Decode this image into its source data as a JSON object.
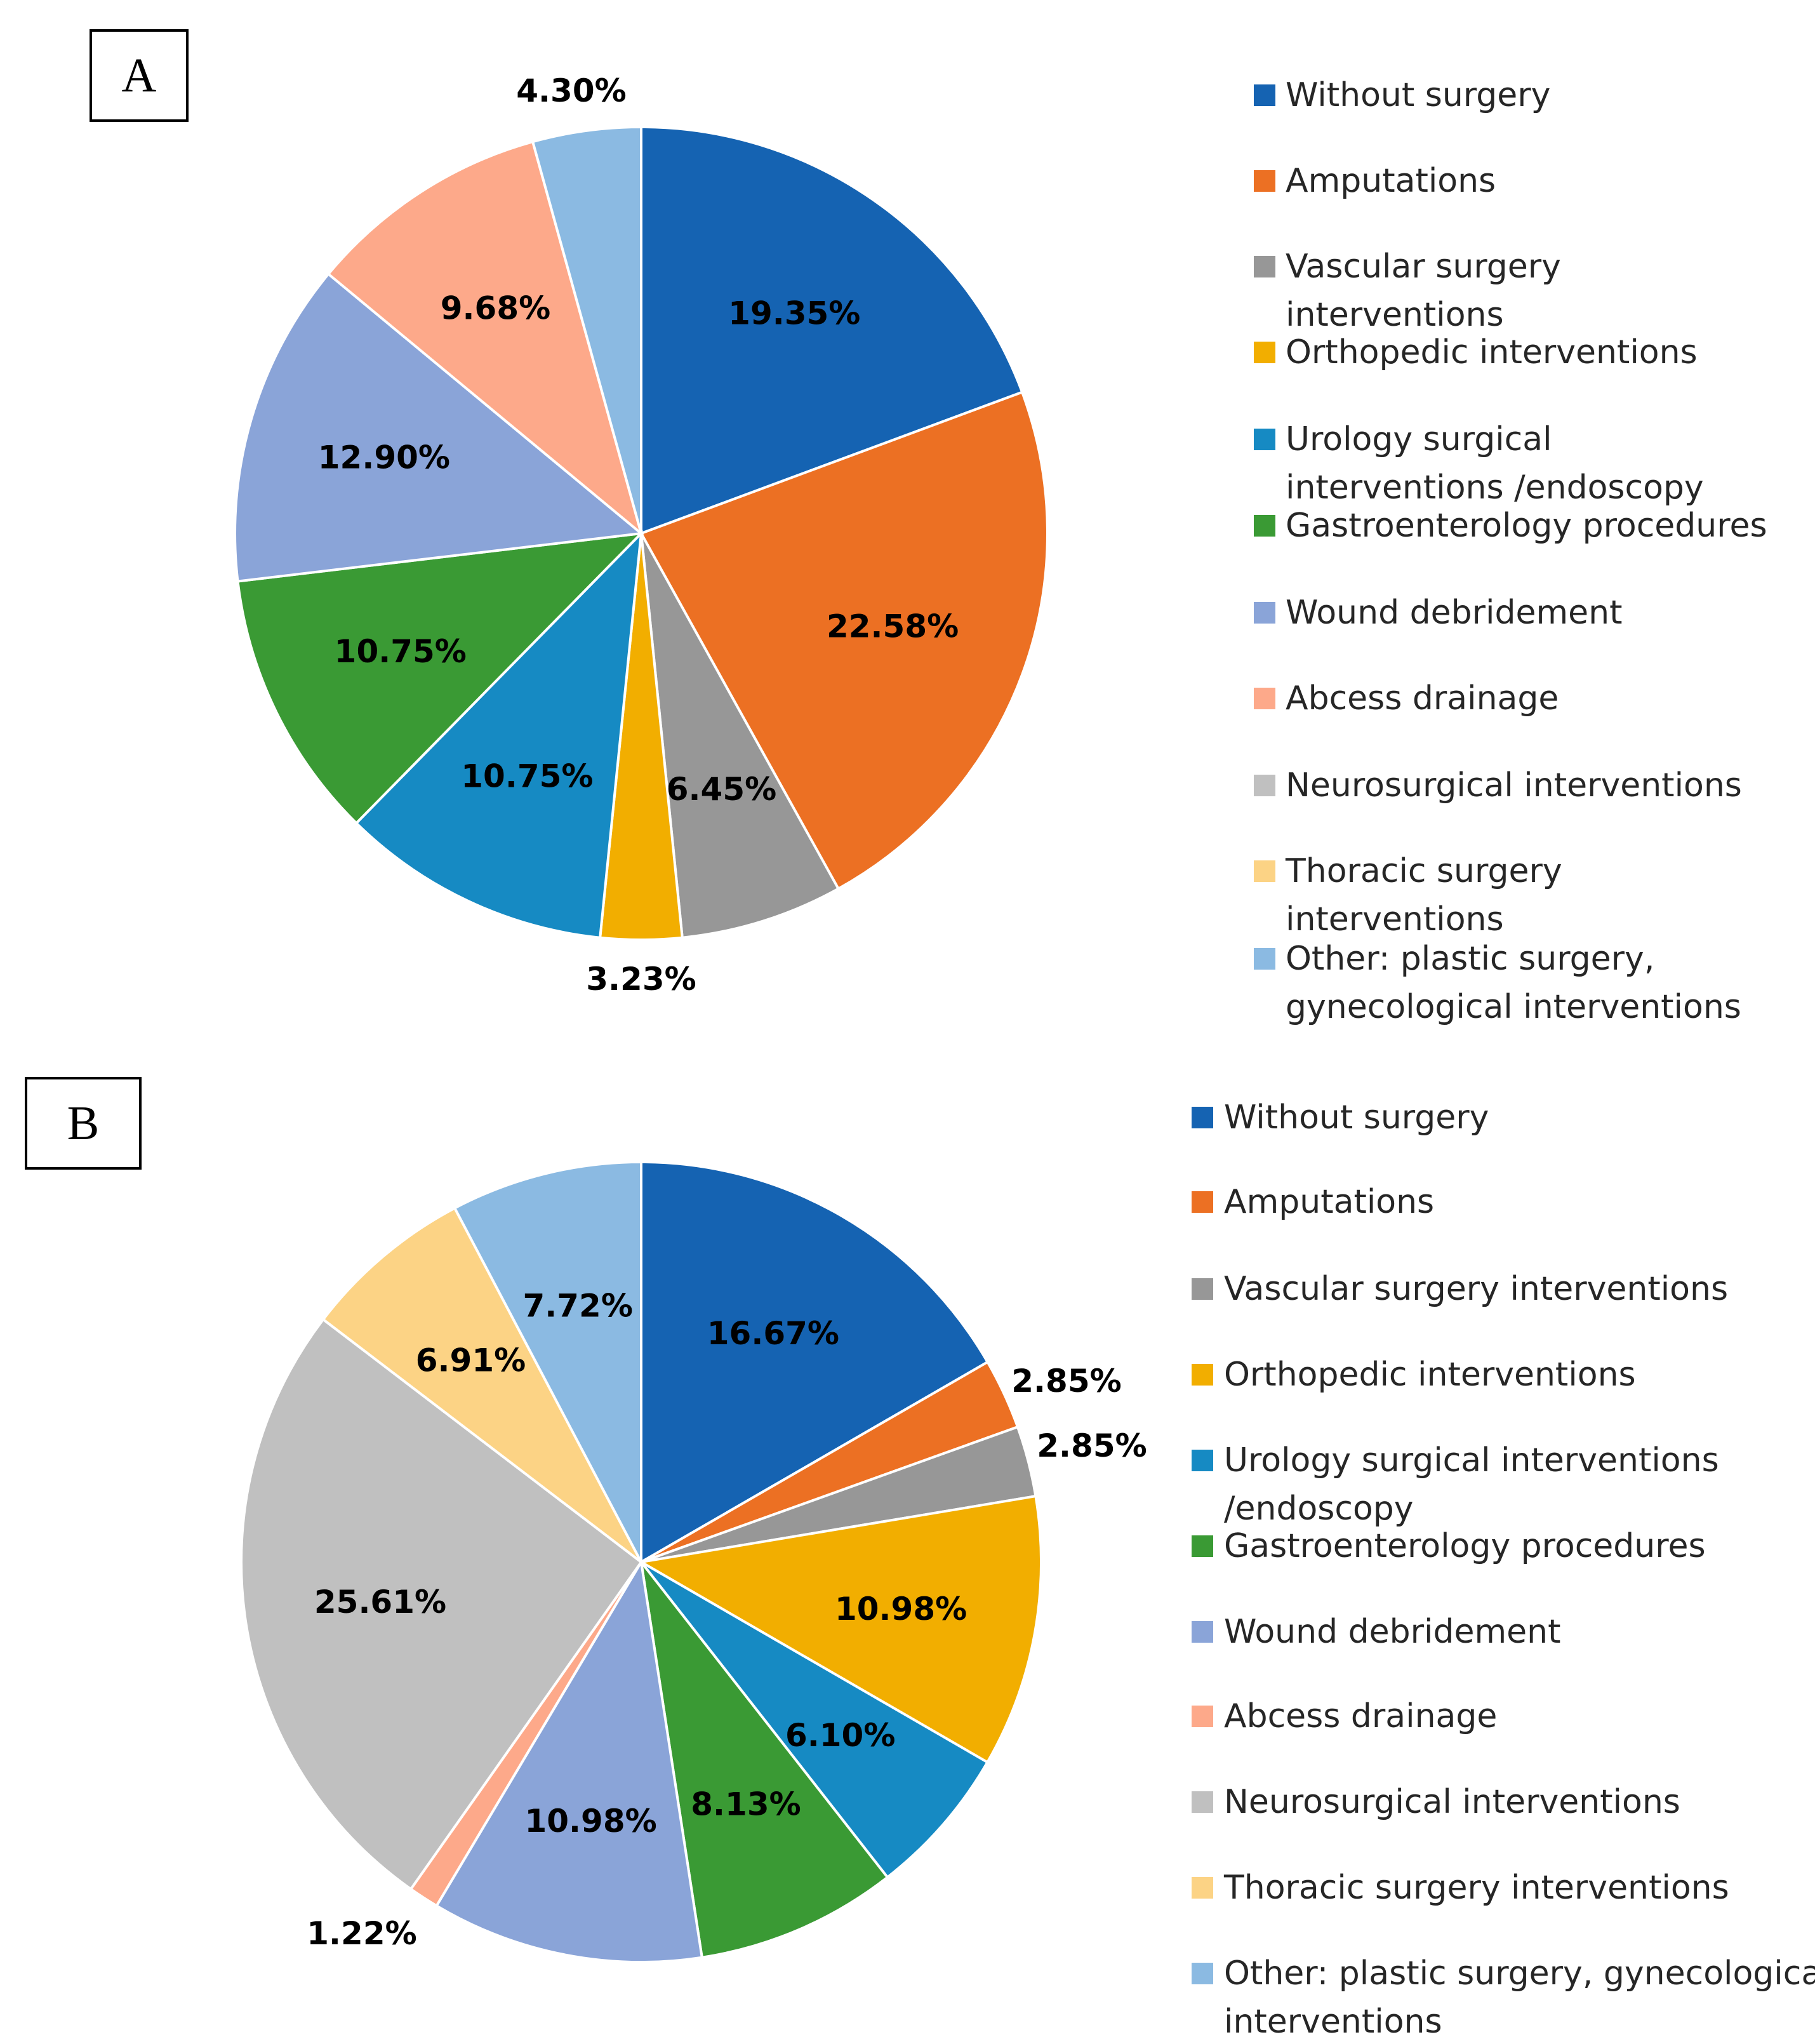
{
  "chart_data": [
    {
      "panel": "A",
      "type": "pie",
      "slices": [
        {
          "name": "Without surgery",
          "value": 19.35,
          "label": "19.35%",
          "color": "#1563B2"
        },
        {
          "name": "Amputations",
          "value": 22.58,
          "label": "22.58%",
          "color": "#EC7023"
        },
        {
          "name": "Vascular surgery interventions",
          "value": 6.45,
          "label": "6.45%",
          "color": "#979797"
        },
        {
          "name": "Orthopedic interventions",
          "value": 3.23,
          "label": "3.23%",
          "color": "#F2AE00"
        },
        {
          "name": "Urology surgical interventions /endoscopy",
          "value": 10.75,
          "label": "10.75%",
          "color": "#168AC3"
        },
        {
          "name": "Gastroenterology procedures",
          "value": 10.75,
          "label": "10.75%",
          "color": "#3A9A34"
        },
        {
          "name": "Wound debridement",
          "value": 12.9,
          "label": "12.90%",
          "color": "#8AA4D8"
        },
        {
          "name": "Abcess drainage",
          "value": 9.68,
          "label": "9.68%",
          "color": "#FDA98A"
        },
        {
          "name": "Neurosurgical interventions",
          "value": 0,
          "label": "",
          "color": "#C0C0C0"
        },
        {
          "name": "Thoracic surgery interventions",
          "value": 0,
          "label": "",
          "color": "#FCD385"
        },
        {
          "name": "Other: plastic surgery, gynecological interventions",
          "value": 4.3,
          "label": "4.30%",
          "color": "#8BBAE2"
        }
      ],
      "legend": [
        [
          "Without surgery"
        ],
        [
          "Amputations"
        ],
        [
          "Vascular surgery",
          "interventions"
        ],
        [
          "Orthopedic interventions"
        ],
        [
          "Urology surgical",
          "interventions /endoscopy"
        ],
        [
          "Gastroenterology procedures"
        ],
        [
          "Wound debridement"
        ],
        [
          "Abcess drainage"
        ],
        [
          "Neurosurgical interventions"
        ],
        [
          "Thoracic surgery",
          "interventions"
        ],
        [
          "Other: plastic surgery,",
          "gynecological interventions"
        ]
      ]
    },
    {
      "panel": "B",
      "type": "pie",
      "slices": [
        {
          "name": "Without surgery",
          "value": 16.67,
          "label": "16.67%",
          "color": "#1563B2"
        },
        {
          "name": "Amputations",
          "value": 2.85,
          "label": "2.85%",
          "color": "#EC7023"
        },
        {
          "name": "Vascular surgery interventions",
          "value": 2.85,
          "label": "2.85%",
          "color": "#979797"
        },
        {
          "name": "Orthopedic interventions",
          "value": 10.98,
          "label": "10.98%",
          "color": "#F2AE00"
        },
        {
          "name": "Urology surgical interventions /endoscopy",
          "value": 6.1,
          "label": "6.10%",
          "color": "#168AC3"
        },
        {
          "name": "Gastroenterology procedures",
          "value": 8.13,
          "label": "8.13%",
          "color": "#3A9A34"
        },
        {
          "name": "Wound debridement",
          "value": 10.98,
          "label": "10.98%",
          "color": "#8AA4D8"
        },
        {
          "name": "Abcess drainage",
          "value": 1.22,
          "label": "1.22%",
          "color": "#FDA98A"
        },
        {
          "name": "Neurosurgical interventions",
          "value": 25.61,
          "label": "25.61%",
          "color": "#C0C0C0"
        },
        {
          "name": "Thoracic surgery interventions",
          "value": 6.91,
          "label": "6.91%",
          "color": "#FCD385"
        },
        {
          "name": "Other: plastic surgery, gynecological interventions",
          "value": 7.72,
          "label": "7.72%",
          "color": "#8BBAE2"
        }
      ],
      "legend": [
        [
          "Without surgery"
        ],
        [
          "Amputations"
        ],
        [
          "Vascular surgery interventions"
        ],
        [
          "Orthopedic interventions"
        ],
        [
          "Urology surgical interventions",
          "/endoscopy"
        ],
        [
          "Gastroenterology procedures"
        ],
        [
          "Wound debridement"
        ],
        [
          "Abcess drainage"
        ],
        [
          "Neurosurgical interventions"
        ],
        [
          "Thoracic surgery interventions"
        ],
        [
          "Other: plastic surgery, gynecological",
          "interventions"
        ]
      ]
    }
  ]
}
